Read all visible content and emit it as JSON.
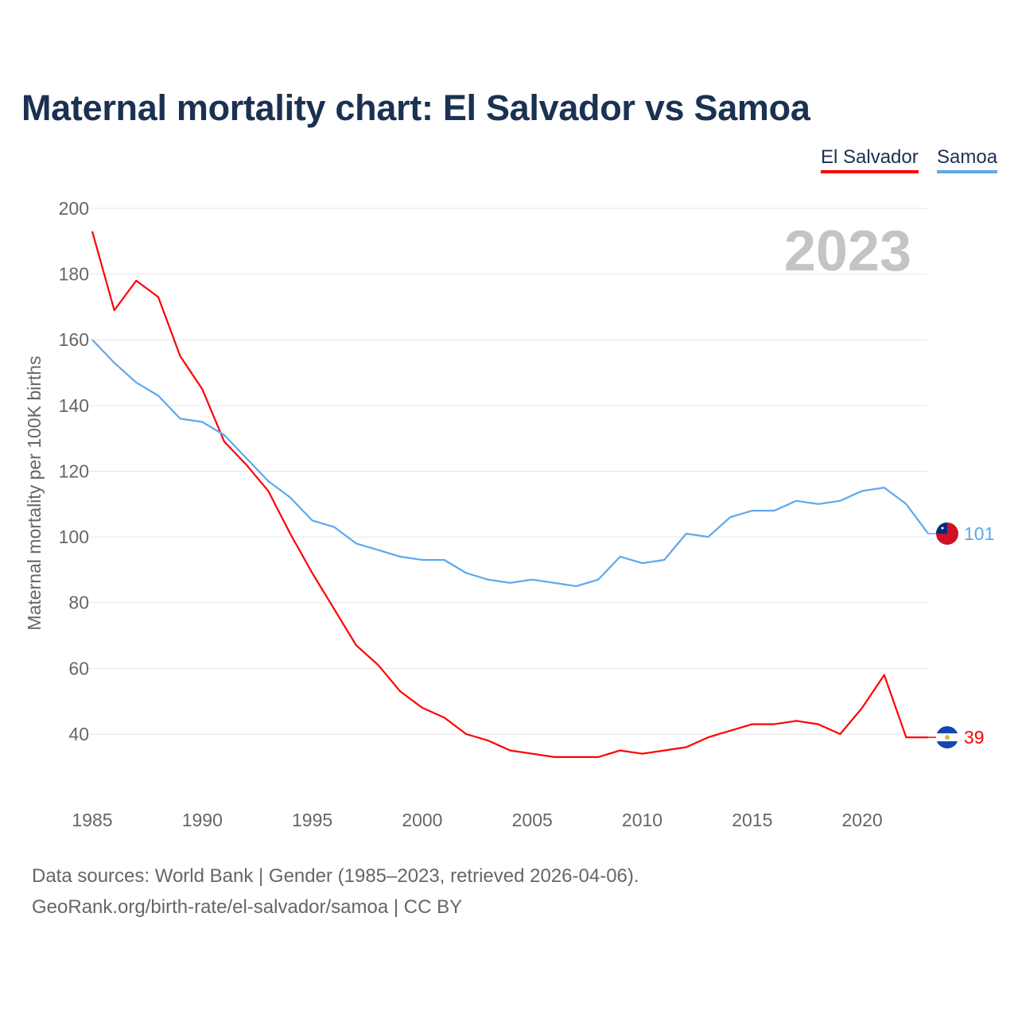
{
  "title": "Maternal mortality chart: El Salvador vs Samoa",
  "legend": [
    {
      "label": "El Salvador",
      "color": "#ff0000"
    },
    {
      "label": "Samoa",
      "color": "#5da8ee"
    }
  ],
  "footer": {
    "line1": "Data sources: World Bank | Gender (1985–2023, retrieved 2026-04-06).",
    "line2": "GeoRank.org/birth-rate/el-salvador/samoa | CC BY"
  },
  "chart_data": {
    "type": "line",
    "title": "Maternal mortality chart: El Salvador vs Samoa",
    "ylabel": "Maternal mortality per 100K births",
    "xlabel": "",
    "year_watermark": "2023",
    "x": [
      1985,
      1986,
      1987,
      1988,
      1989,
      1990,
      1991,
      1992,
      1993,
      1994,
      1995,
      1996,
      1997,
      1998,
      1999,
      2000,
      2001,
      2002,
      2003,
      2004,
      2005,
      2006,
      2007,
      2008,
      2009,
      2010,
      2011,
      2012,
      2013,
      2014,
      2015,
      2016,
      2017,
      2018,
      2019,
      2020,
      2021,
      2022,
      2023
    ],
    "xticks": [
      "1985",
      "1990",
      "1995",
      "2000",
      "2005",
      "2010",
      "2015",
      "2020"
    ],
    "yticks": [
      "40",
      "60",
      "80",
      "100",
      "120",
      "140",
      "160",
      "180",
      "200"
    ],
    "ylim": [
      20,
      200
    ],
    "grid": true,
    "legend_position": "top-right",
    "series": [
      {
        "name": "El Salvador",
        "color": "#ff0000",
        "end_label": "39",
        "values": [
          193,
          169,
          178,
          173,
          155,
          145,
          129,
          122,
          114,
          101,
          89,
          78,
          67,
          61,
          53,
          48,
          45,
          40,
          38,
          35,
          34,
          33,
          33,
          33,
          35,
          34,
          35,
          36,
          39,
          41,
          43,
          43,
          44,
          43,
          40,
          48,
          58,
          39,
          39
        ]
      },
      {
        "name": "Samoa",
        "color": "#5da8ee",
        "end_label": "101",
        "values": [
          160,
          153,
          147,
          143,
          136,
          135,
          131,
          124,
          117,
          112,
          105,
          103,
          98,
          96,
          94,
          93,
          93,
          89,
          87,
          86,
          87,
          86,
          85,
          87,
          94,
          92,
          93,
          101,
          100,
          106,
          108,
          108,
          111,
          110,
          111,
          114,
          115,
          110,
          101
        ]
      }
    ]
  }
}
